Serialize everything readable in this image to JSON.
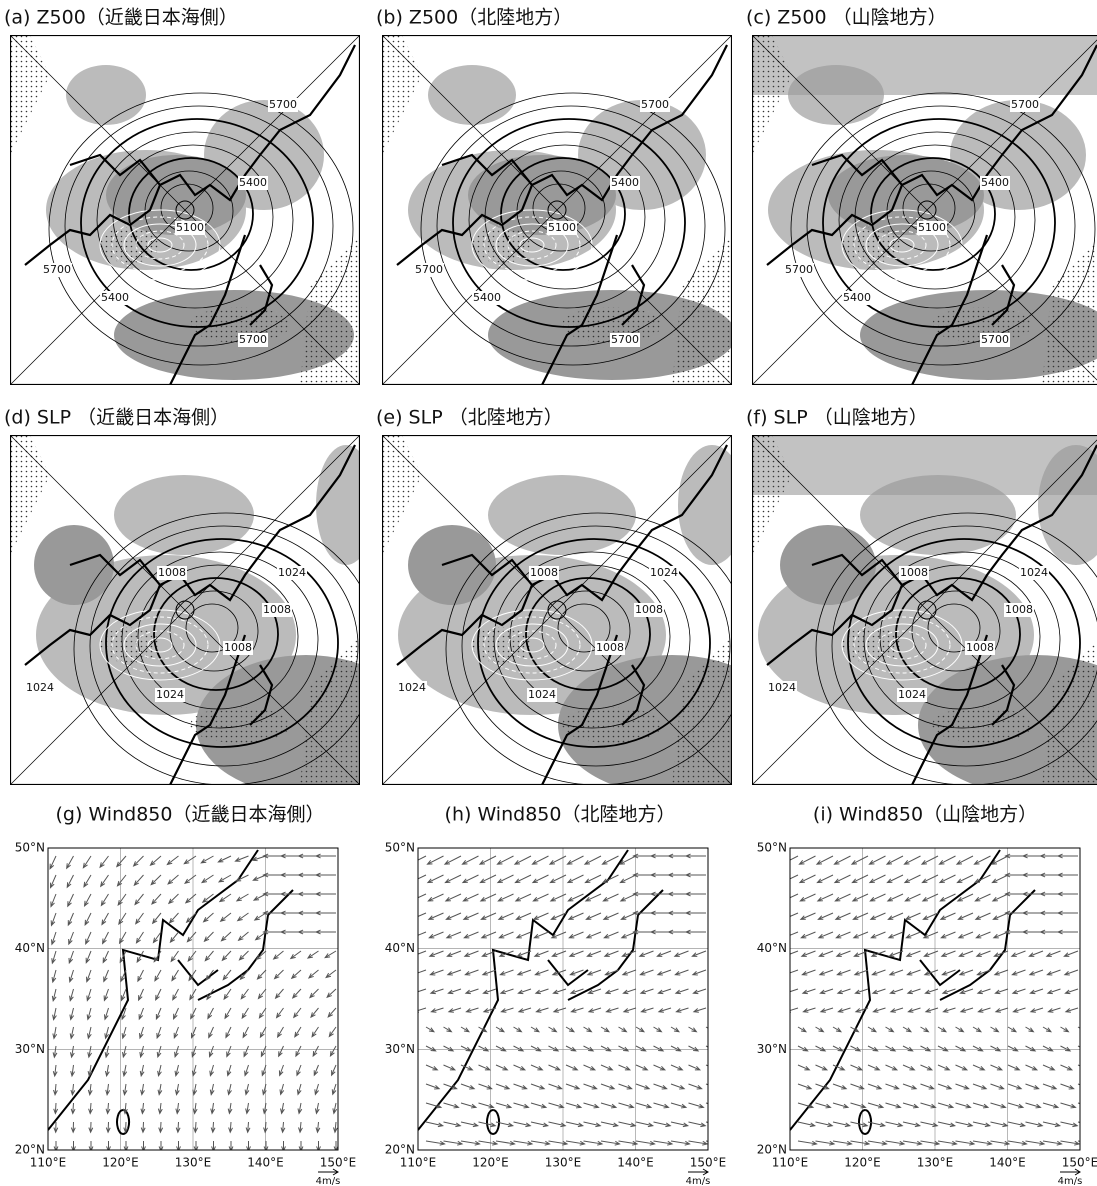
{
  "panels": [
    {
      "title": "(a) Z500（近畿日本海側）",
      "contour_labels": [
        5700,
        5400,
        5100,
        5700,
        5400,
        5700
      ]
    },
    {
      "title": "(b) Z500（北陸地方）",
      "contour_labels": [
        5700,
        5400,
        5100,
        5700,
        5400,
        5700
      ]
    },
    {
      "title": "(c) Z500 （山陰地方）",
      "contour_labels": [
        5700,
        5400,
        5100,
        5700,
        5400,
        5700
      ]
    },
    {
      "title": "(d) SLP （近畿日本海側）",
      "contour_labels": [
        1008,
        1024,
        1008,
        1008,
        1024,
        1024
      ]
    },
    {
      "title": "(e) SLP （北陸地方）",
      "contour_labels": [
        1008,
        1024,
        1008,
        1008,
        1024,
        1024
      ]
    },
    {
      "title": "(f) SLP （山陰地方）",
      "contour_labels": [
        1008,
        1024,
        1008,
        1008,
        1024,
        1024
      ]
    }
  ],
  "wind_panels": [
    {
      "title": "(g) Wind850（近畿日本海側）"
    },
    {
      "title": "(h) Wind850（北陸地方）"
    },
    {
      "title": "(i) Wind850（山陰地方）"
    }
  ],
  "wind_axes": {
    "xlim": [
      110,
      150
    ],
    "ylim": [
      20,
      50
    ],
    "xticks": [
      {
        "value": 110,
        "label": "110°E"
      },
      {
        "value": 120,
        "label": "120°E"
      },
      {
        "value": 130,
        "label": "130°E"
      },
      {
        "value": 140,
        "label": "140°E"
      },
      {
        "value": 150,
        "label": "150°E"
      }
    ],
    "yticks": [
      {
        "value": 20,
        "label": "20°N"
      },
      {
        "value": 30,
        "label": "30°N"
      },
      {
        "value": 40,
        "label": "40°N"
      },
      {
        "value": 50,
        "label": "50°N"
      }
    ],
    "scale_label": "4m/s"
  }
}
